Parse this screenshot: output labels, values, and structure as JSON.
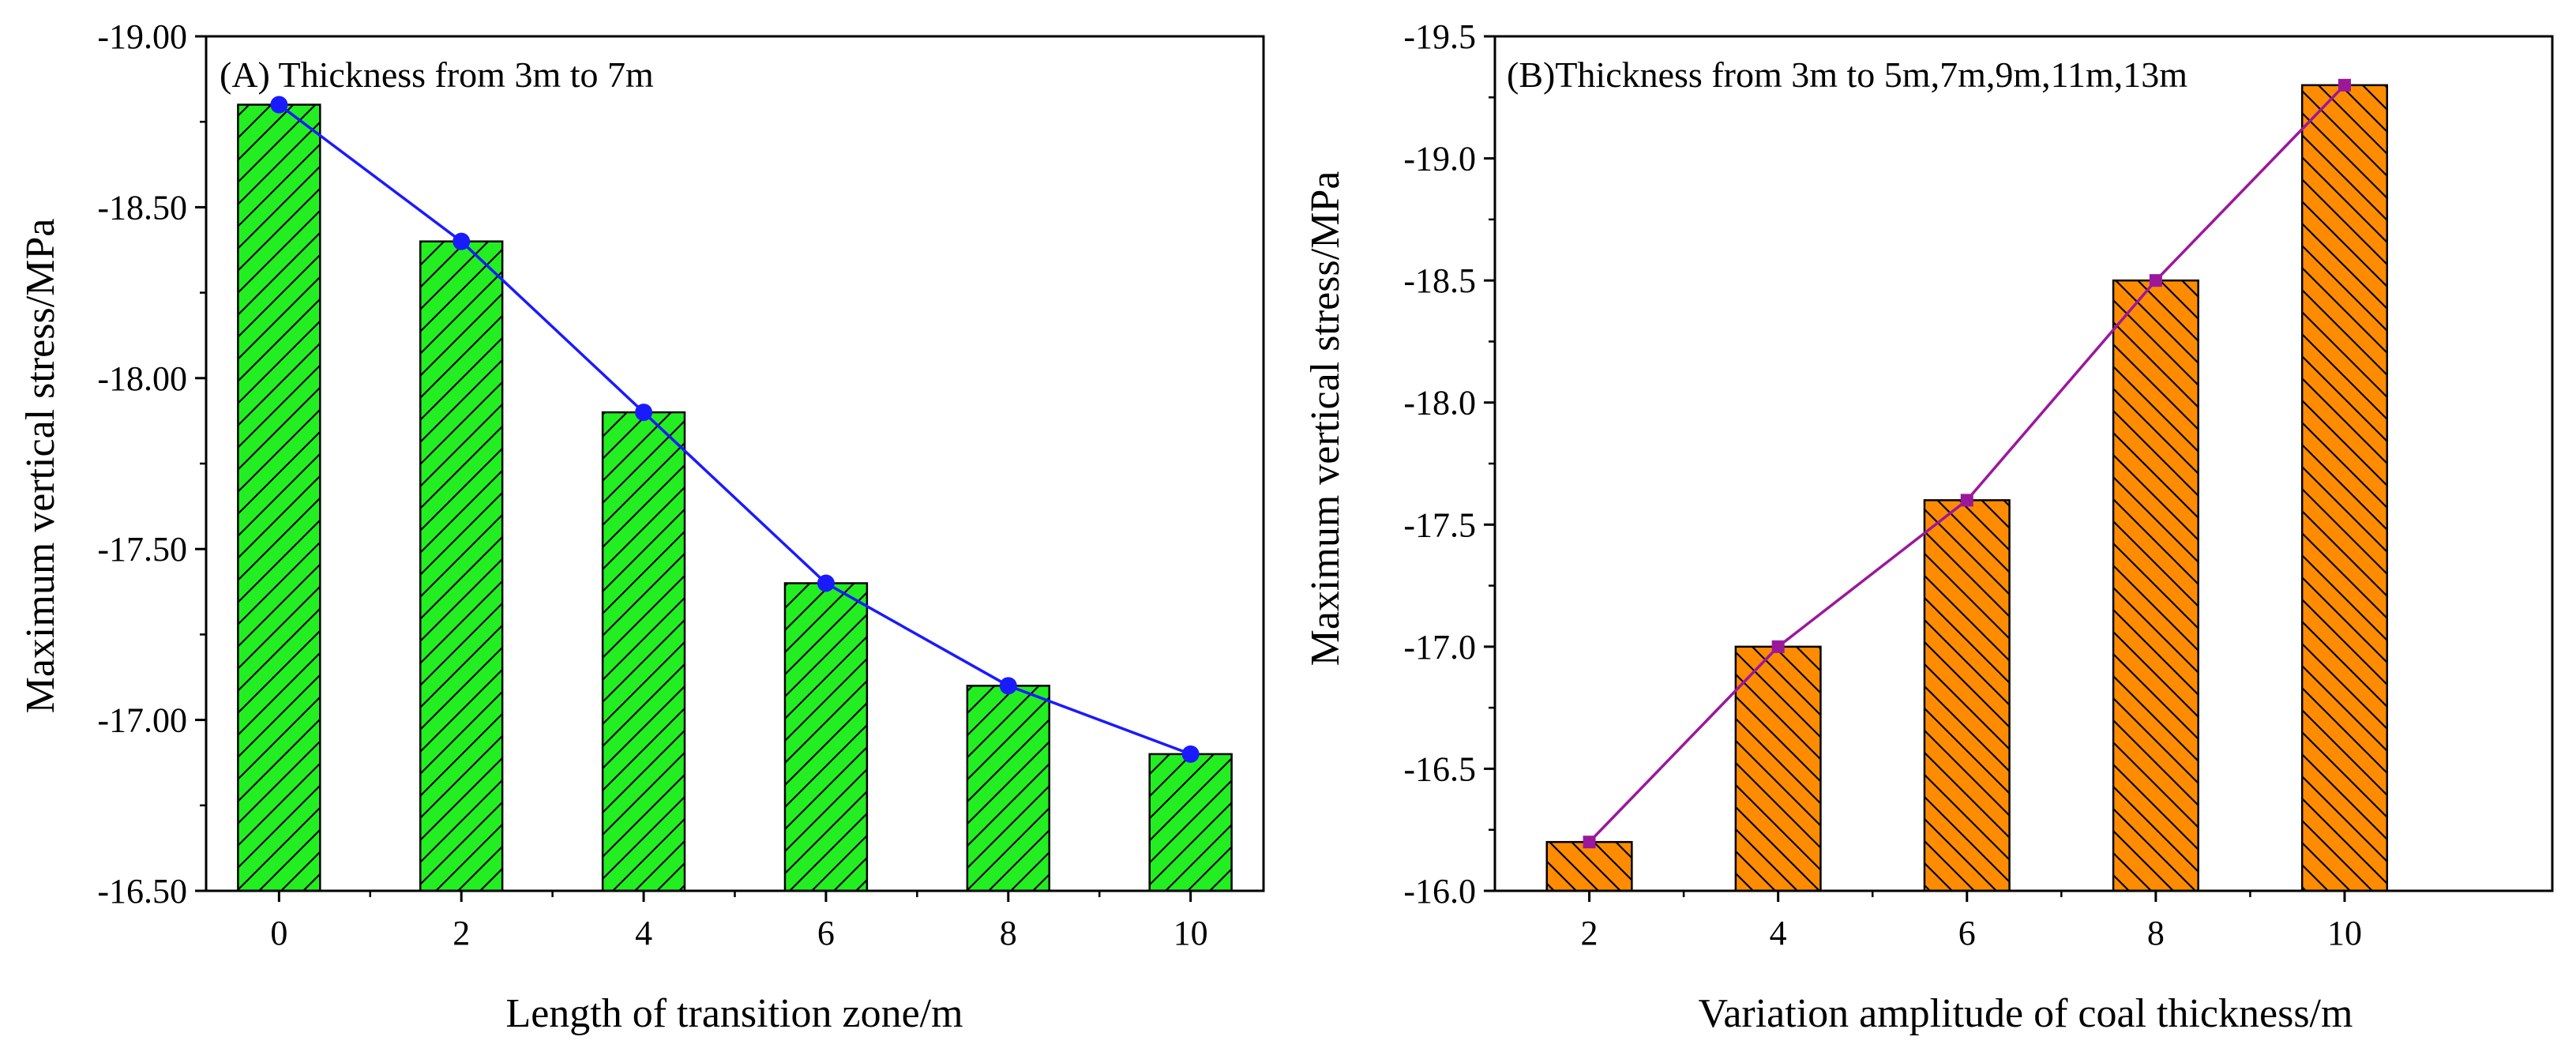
{
  "chart_data": [
    {
      "type": "bar",
      "panel": "A",
      "title": "(A) Thickness from 3m to 7m",
      "xlabel": "Length of transition zone/m",
      "ylabel": "Maximum vertical stress/MPa",
      "categories": [
        "0",
        "2",
        "4",
        "6",
        "8",
        "10"
      ],
      "x": [
        0,
        2,
        4,
        6,
        8,
        10
      ],
      "values": [
        -18.8,
        -18.4,
        -17.9,
        -17.4,
        -17.1,
        -16.9
      ],
      "overlay_line": {
        "values": [
          -18.8,
          -18.4,
          -17.9,
          -17.4,
          -17.1,
          -16.9
        ],
        "marker": "circle"
      },
      "xlim": [
        -0.8,
        10.8
      ],
      "ylim": [
        -16.5,
        -19.0
      ],
      "y_ticks": [
        -16.5,
        -17.0,
        -17.5,
        -18.0,
        -18.5,
        -19.0
      ],
      "y_tick_labels": [
        "-16.50",
        "-17.00",
        "-17.50",
        "-18.00",
        "-18.50",
        "-19.00"
      ],
      "x_ticks": [
        0,
        2,
        4,
        6,
        8,
        10
      ],
      "x_tick_labels": [
        "0",
        "2",
        "4",
        "6",
        "8",
        "10"
      ],
      "bar_width": 0.9,
      "colors": {
        "bar": "#22ee22",
        "line": "#1a1aff",
        "marker": "#1a1aff"
      },
      "hatch": "diagonal-up",
      "grid": false
    },
    {
      "type": "bar",
      "panel": "B",
      "title": "(B)Thickness from 3m to 5m,7m,9m,11m,13m",
      "xlabel": "Variation amplitude of coal thickness/m",
      "ylabel": "Maximum vertical stress/MPa",
      "categories": [
        "2",
        "4",
        "6",
        "8",
        "10"
      ],
      "x": [
        2,
        4,
        6,
        8,
        10
      ],
      "values": [
        -16.2,
        -17.0,
        -17.6,
        -18.5,
        -19.3
      ],
      "overlay_line": {
        "values": [
          -16.2,
          -17.0,
          -17.6,
          -18.5,
          -19.3
        ],
        "marker": "square"
      },
      "xlim": [
        1.0,
        12.2
      ],
      "ylim": [
        -16.0,
        -19.5
      ],
      "y_ticks": [
        -16.0,
        -16.5,
        -17.0,
        -17.5,
        -18.0,
        -18.5,
        -19.0,
        -19.5
      ],
      "y_tick_labels": [
        "-16.0",
        "-16.5",
        "-17.0",
        "-17.5",
        "-18.0",
        "-18.5",
        "-19.0",
        "-19.5"
      ],
      "x_ticks": [
        2,
        4,
        6,
        8,
        10
      ],
      "x_tick_labels": [
        "2",
        "4",
        "6",
        "8",
        "10"
      ],
      "bar_width": 0.9,
      "colors": {
        "bar": "#ff8c00",
        "line": "#9b189b",
        "marker": "#9b189b"
      },
      "hatch": "diagonal-down",
      "grid": false
    }
  ]
}
